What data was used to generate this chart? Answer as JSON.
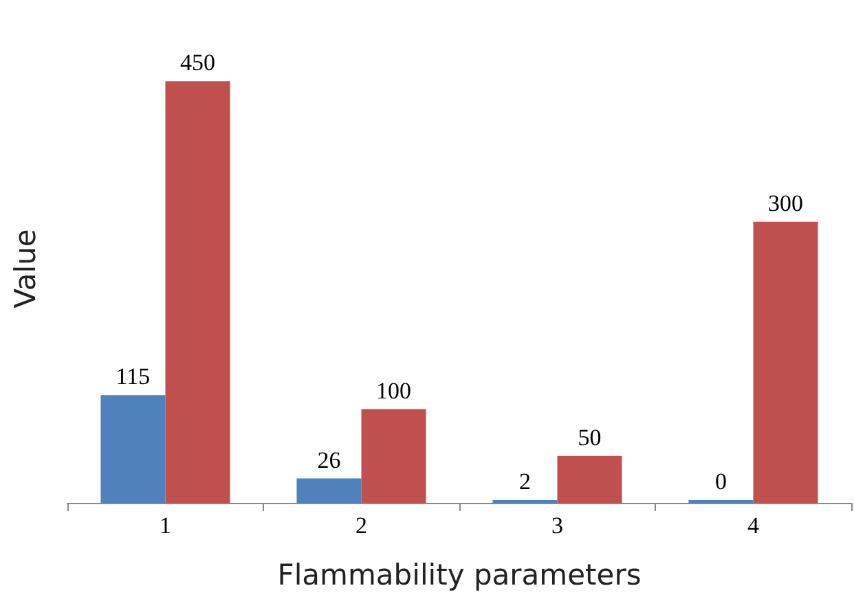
{
  "chart_data": {
    "type": "bar",
    "xlabel": "Flammability parameters",
    "ylabel": "Value",
    "categories": [
      "1",
      "2",
      "3",
      "4"
    ],
    "series": [
      {
        "color": "#4f81bd",
        "values": [
          115,
          26,
          2,
          0
        ]
      },
      {
        "color": "#c0504d",
        "values": [
          450,
          100,
          50,
          300
        ]
      }
    ],
    "data_labels": true,
    "grid": false
  }
}
